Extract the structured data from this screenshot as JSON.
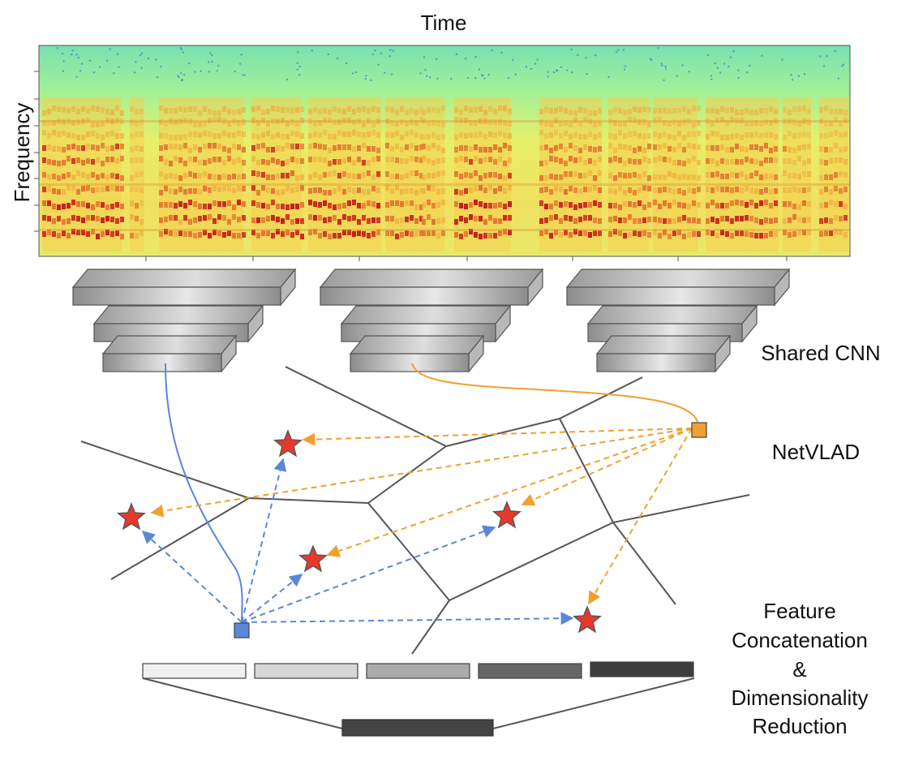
{
  "labels": {
    "time": "Time",
    "frequency": "Frequency",
    "shared_cnn": "Shared CNN",
    "netvlad": "NetVLAD",
    "feature_lines": [
      "Feature",
      "Concatenation",
      "&",
      "Dimensionality",
      "Reduction"
    ]
  },
  "colors": {
    "blue": "#5b86d9",
    "orange": "#f0a030",
    "star": "#e8382c",
    "edge": "#555555",
    "cnn_light": "#e6e6e6",
    "cnn_dark": "#8a8a8a"
  },
  "feature_bars": [
    {
      "shade": "#f0f0f0"
    },
    {
      "shade": "#d6d6d6"
    },
    {
      "shade": "#ababab"
    },
    {
      "shade": "#666666"
    },
    {
      "shade": "#3d3d3d"
    }
  ],
  "reduced_bar": {
    "shade": "#444444"
  },
  "spectrogram": {
    "colormap": "jet",
    "background": "#7ee8a0"
  }
}
